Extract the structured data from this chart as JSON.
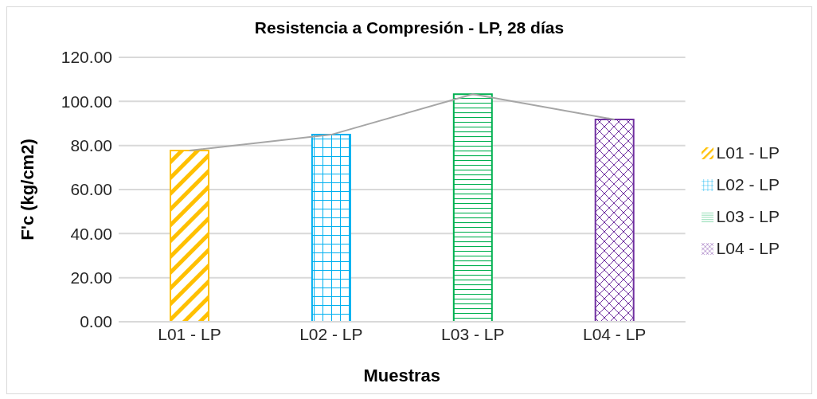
{
  "chart_data": {
    "type": "bar",
    "title": "Resistencia a Compresión - LP, 28 días",
    "xlabel": "Muestras",
    "ylabel": "F'c (kg/cm2)",
    "categories": [
      "L01 - LP",
      "L02 - LP",
      "L03 - LP",
      "L04 - LP"
    ],
    "stacked": true,
    "series": [
      {
        "name": "L01 - LP",
        "color": "#ffc000",
        "values": [
          77.7,
          null,
          null,
          null
        ]
      },
      {
        "name": "L02 - LP",
        "color": "#00b0f0",
        "values": [
          null,
          84.9,
          null,
          null
        ]
      },
      {
        "name": "L03 - LP",
        "color": "#00b050",
        "values": [
          null,
          null,
          103.3,
          null
        ]
      },
      {
        "name": "L04 - LP",
        "color": "#7030a0",
        "values": [
          null,
          null,
          null,
          91.8
        ]
      },
      {
        "type": "line",
        "color": "#a6a6a6",
        "values": [
          77.7,
          84.9,
          103.3,
          91.8
        ]
      }
    ],
    "ylim": [
      0,
      120
    ],
    "yticks": [
      {
        "value": 0,
        "label": "0.00"
      },
      {
        "value": 20,
        "label": "20.00"
      },
      {
        "value": 40,
        "label": "40.00"
      },
      {
        "value": 60,
        "label": "60.00"
      },
      {
        "value": 80,
        "label": "80.00"
      },
      {
        "value": 100,
        "label": "100.00"
      },
      {
        "value": 120,
        "label": "120.00"
      }
    ],
    "grid": "y",
    "legend": "right",
    "marker": "none"
  }
}
